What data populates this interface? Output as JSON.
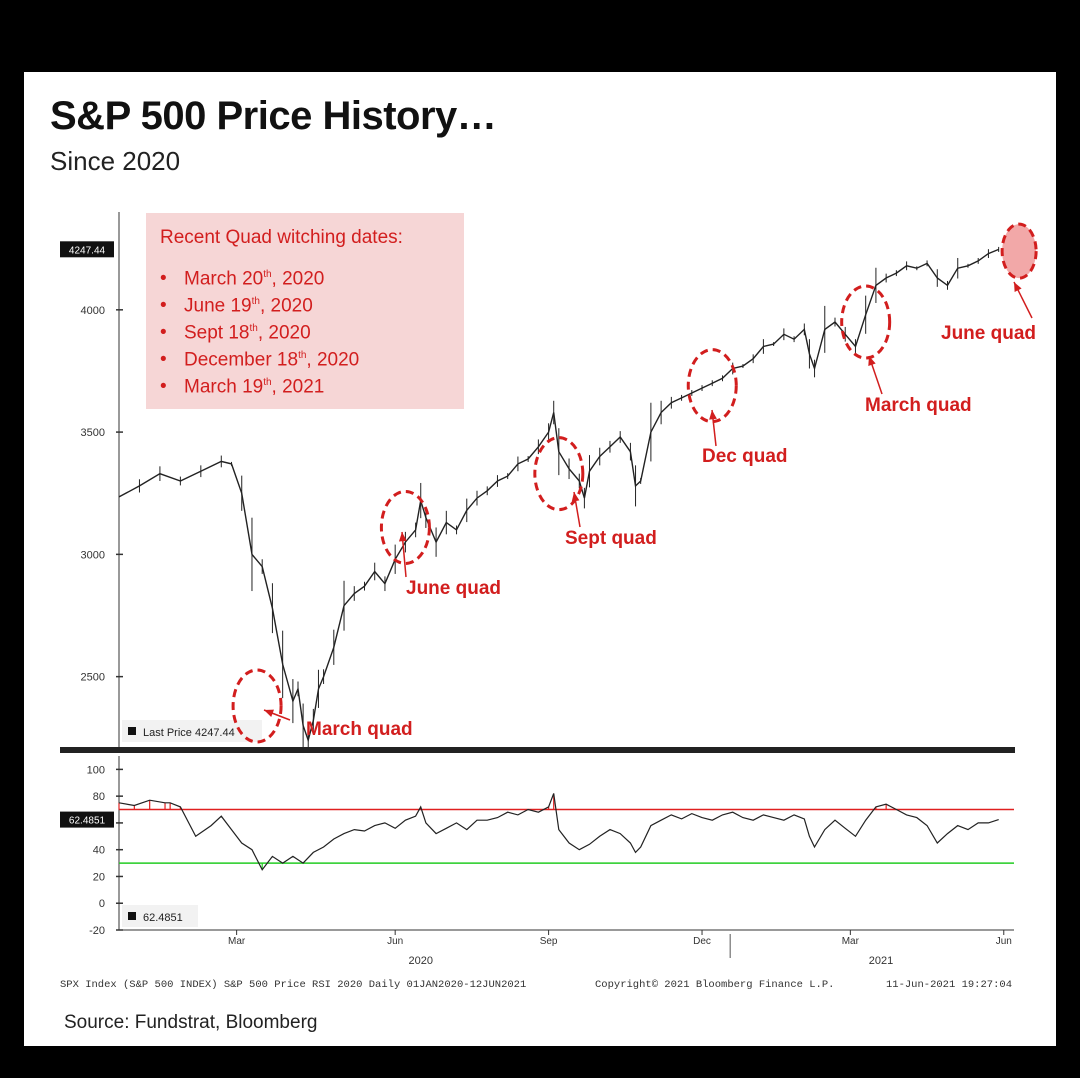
{
  "header": {
    "title": "S&P 500 Price History…",
    "subtitle": "Since 2020"
  },
  "legend": {
    "title": "Recent Quad witching dates:",
    "items": [
      {
        "month": "March 20",
        "suffix": "th",
        "year": ", 2020"
      },
      {
        "month": "June 19",
        "suffix": "th",
        "year": ", 2020"
      },
      {
        "month": "Sept 18",
        "suffix": "th",
        "year": ", 2020"
      },
      {
        "month": "December 18",
        "suffix": "th",
        "year": ", 2020"
      },
      {
        "month": "March 19",
        "suffix": "th",
        "year": ", 2021"
      }
    ]
  },
  "footer": {
    "info": "SPX Index (S&P 500 INDEX) S&P 500 Price RSI 2020  Daily 01JAN2020-12JUN2021",
    "copyright": "Copyright© 2021 Bloomberg Finance L.P.",
    "timestamp": "11-Jun-2021 19:27:04",
    "source": "Source: Fundstrat, Bloomberg"
  },
  "colors": {
    "accent": "#d21e1e",
    "price_line": "#222222",
    "overbought": "#e02020",
    "oversold": "#22cc22",
    "legend_bg": "#f6d6d6"
  },
  "chart_data": {
    "type": "line",
    "title": "S&P 500 Price History…",
    "subtitle": "Since 2020",
    "price_panel": {
      "ylim": [
        2200,
        4400
      ],
      "yticks": [
        2500,
        3000,
        3500,
        4000
      ],
      "last_price_label": "4247.44",
      "legend_label": "Last Price",
      "legend_value": "4247.44",
      "series": {
        "name": "S&P 500 (SPX)",
        "points": [
          [
            0.0,
            3235
          ],
          [
            0.4,
            3280
          ],
          [
            0.8,
            3330
          ],
          [
            1.2,
            3300
          ],
          [
            1.6,
            3340
          ],
          [
            2.0,
            3380
          ],
          [
            2.2,
            3370
          ],
          [
            2.4,
            3250
          ],
          [
            2.6,
            3000
          ],
          [
            2.8,
            2950
          ],
          [
            3.0,
            2780
          ],
          [
            3.2,
            2550
          ],
          [
            3.4,
            2400
          ],
          [
            3.5,
            2450
          ],
          [
            3.6,
            2300
          ],
          [
            3.7,
            2240
          ],
          [
            3.8,
            2320
          ],
          [
            3.9,
            2450
          ],
          [
            4.0,
            2500
          ],
          [
            4.2,
            2620
          ],
          [
            4.4,
            2790
          ],
          [
            4.6,
            2840
          ],
          [
            4.8,
            2870
          ],
          [
            5.0,
            2930
          ],
          [
            5.2,
            2880
          ],
          [
            5.4,
            2980
          ],
          [
            5.6,
            3050
          ],
          [
            5.8,
            3100
          ],
          [
            5.9,
            3220
          ],
          [
            6.0,
            3150
          ],
          [
            6.2,
            3050
          ],
          [
            6.4,
            3130
          ],
          [
            6.6,
            3100
          ],
          [
            6.8,
            3180
          ],
          [
            7.0,
            3230
          ],
          [
            7.2,
            3260
          ],
          [
            7.4,
            3300
          ],
          [
            7.6,
            3320
          ],
          [
            7.8,
            3370
          ],
          [
            8.0,
            3390
          ],
          [
            8.2,
            3440
          ],
          [
            8.4,
            3500
          ],
          [
            8.5,
            3580
          ],
          [
            8.6,
            3420
          ],
          [
            8.8,
            3350
          ],
          [
            9.0,
            3300
          ],
          [
            9.1,
            3230
          ],
          [
            9.2,
            3340
          ],
          [
            9.4,
            3400
          ],
          [
            9.6,
            3440
          ],
          [
            9.8,
            3480
          ],
          [
            10.0,
            3420
          ],
          [
            10.1,
            3280
          ],
          [
            10.2,
            3300
          ],
          [
            10.4,
            3500
          ],
          [
            10.6,
            3580
          ],
          [
            10.8,
            3620
          ],
          [
            11.0,
            3640
          ],
          [
            11.2,
            3660
          ],
          [
            11.4,
            3680
          ],
          [
            11.6,
            3700
          ],
          [
            11.8,
            3720
          ],
          [
            12.0,
            3760
          ],
          [
            12.2,
            3770
          ],
          [
            12.4,
            3800
          ],
          [
            12.6,
            3850
          ],
          [
            12.8,
            3860
          ],
          [
            13.0,
            3900
          ],
          [
            13.2,
            3880
          ],
          [
            13.4,
            3920
          ],
          [
            13.5,
            3820
          ],
          [
            13.6,
            3760
          ],
          [
            13.8,
            3920
          ],
          [
            14.0,
            3950
          ],
          [
            14.2,
            3900
          ],
          [
            14.4,
            3850
          ],
          [
            14.6,
            3980
          ],
          [
            14.8,
            4100
          ],
          [
            15.0,
            4130
          ],
          [
            15.2,
            4150
          ],
          [
            15.4,
            4180
          ],
          [
            15.6,
            4170
          ],
          [
            15.8,
            4190
          ],
          [
            16.0,
            4130
          ],
          [
            16.2,
            4100
          ],
          [
            16.4,
            4170
          ],
          [
            16.6,
            4180
          ],
          [
            16.8,
            4200
          ],
          [
            17.0,
            4230
          ],
          [
            17.2,
            4247
          ]
        ]
      }
    },
    "rsi_panel": {
      "ylim": [
        -20,
        110
      ],
      "yticks": [
        -20,
        0,
        20,
        40,
        60,
        80,
        100
      ],
      "overbought": 70,
      "oversold": 30,
      "last_value_label": "62.4851",
      "legend_value": "62.4851",
      "series": {
        "name": "RSI",
        "points": [
          [
            0.0,
            75
          ],
          [
            0.3,
            73
          ],
          [
            0.6,
            77
          ],
          [
            0.9,
            75
          ],
          [
            1.0,
            75
          ],
          [
            1.2,
            72
          ],
          [
            1.5,
            50
          ],
          [
            1.8,
            58
          ],
          [
            2.0,
            65
          ],
          [
            2.2,
            55
          ],
          [
            2.4,
            45
          ],
          [
            2.6,
            40
          ],
          [
            2.8,
            25
          ],
          [
            3.0,
            35
          ],
          [
            3.2,
            30
          ],
          [
            3.4,
            35
          ],
          [
            3.6,
            30
          ],
          [
            3.8,
            38
          ],
          [
            4.0,
            42
          ],
          [
            4.2,
            48
          ],
          [
            4.4,
            52
          ],
          [
            4.6,
            55
          ],
          [
            4.8,
            54
          ],
          [
            5.0,
            58
          ],
          [
            5.2,
            60
          ],
          [
            5.4,
            56
          ],
          [
            5.6,
            62
          ],
          [
            5.8,
            65
          ],
          [
            5.9,
            72
          ],
          [
            6.0,
            60
          ],
          [
            6.2,
            52
          ],
          [
            6.4,
            56
          ],
          [
            6.6,
            60
          ],
          [
            6.8,
            55
          ],
          [
            7.0,
            62
          ],
          [
            7.2,
            62
          ],
          [
            7.4,
            64
          ],
          [
            7.6,
            68
          ],
          [
            7.8,
            66
          ],
          [
            8.0,
            70
          ],
          [
            8.2,
            68
          ],
          [
            8.4,
            72
          ],
          [
            8.5,
            82
          ],
          [
            8.6,
            55
          ],
          [
            8.8,
            45
          ],
          [
            9.0,
            40
          ],
          [
            9.2,
            44
          ],
          [
            9.4,
            50
          ],
          [
            9.6,
            55
          ],
          [
            9.8,
            52
          ],
          [
            10.0,
            45
          ],
          [
            10.1,
            38
          ],
          [
            10.2,
            42
          ],
          [
            10.4,
            58
          ],
          [
            10.6,
            62
          ],
          [
            10.8,
            66
          ],
          [
            11.0,
            63
          ],
          [
            11.2,
            67
          ],
          [
            11.4,
            64
          ],
          [
            11.6,
            62
          ],
          [
            11.8,
            66
          ],
          [
            12.0,
            68
          ],
          [
            12.2,
            64
          ],
          [
            12.4,
            62
          ],
          [
            12.6,
            66
          ],
          [
            12.8,
            64
          ],
          [
            13.0,
            62
          ],
          [
            13.2,
            66
          ],
          [
            13.4,
            63
          ],
          [
            13.5,
            50
          ],
          [
            13.6,
            42
          ],
          [
            13.8,
            55
          ],
          [
            14.0,
            62
          ],
          [
            14.2,
            56
          ],
          [
            14.4,
            50
          ],
          [
            14.6,
            62
          ],
          [
            14.8,
            72
          ],
          [
            15.0,
            74
          ],
          [
            15.2,
            70
          ],
          [
            15.4,
            66
          ],
          [
            15.6,
            64
          ],
          [
            15.8,
            58
          ],
          [
            16.0,
            45
          ],
          [
            16.2,
            52
          ],
          [
            16.4,
            58
          ],
          [
            16.6,
            55
          ],
          [
            16.8,
            60
          ],
          [
            17.0,
            60
          ],
          [
            17.2,
            62.4851
          ]
        ]
      }
    },
    "x_axis": {
      "unit": "months since Jan 2020",
      "xlim": [
        0,
        17.5
      ],
      "ticks": [
        {
          "label": "Mar",
          "x": 2.3
        },
        {
          "label": "Jun",
          "x": 5.4
        },
        {
          "label": "Sep",
          "x": 8.4
        },
        {
          "label": "Dec",
          "x": 11.4
        },
        {
          "label": "Mar",
          "x": 14.3
        },
        {
          "label": "Jun",
          "x": 17.3
        }
      ],
      "years": [
        {
          "label": "2020",
          "x": 5.9
        },
        {
          "label": "2021",
          "x": 14.9
        }
      ],
      "year_divider_x": 11.95
    },
    "annotations": [
      {
        "label": "March quad",
        "date_x": 2.7,
        "price": 2380
      },
      {
        "label": "June quad",
        "date_x": 5.6,
        "price": 3110
      },
      {
        "label": "Sept quad",
        "date_x": 8.6,
        "price": 3330
      },
      {
        "label": "Dec quad",
        "date_x": 11.6,
        "price": 3690
      },
      {
        "label": "March quad",
        "date_x": 14.6,
        "price": 3950
      },
      {
        "label": "June quad",
        "date_x": 17.6,
        "price": 4240
      }
    ]
  }
}
